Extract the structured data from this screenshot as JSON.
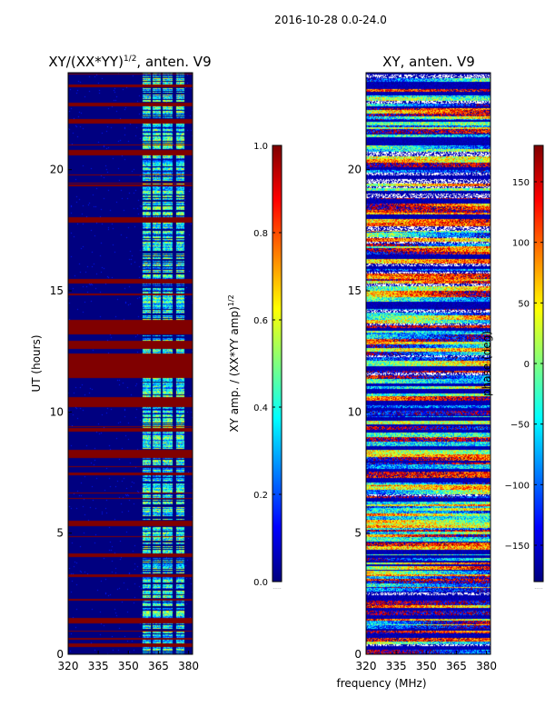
{
  "figure_title": "2016-10-28 0.0-24.0",
  "colors": {
    "jet": [
      "#00007f",
      "#0000ff",
      "#007fff",
      "#00ffff",
      "#7fff7f",
      "#ffff00",
      "#ff7f00",
      "#ff0000",
      "#7f0000"
    ],
    "background": "#ffffff",
    "axis": "#000000"
  },
  "chart_data": [
    {
      "type": "heatmap",
      "title_main": "XY/(XX*YY)",
      "title_sup": "1/2",
      "title_rest": ", anten. V9",
      "xlabel": "",
      "ylabel": "UT (hours)",
      "xlim": [
        320,
        382
      ],
      "ylim": [
        0,
        24
      ],
      "xticks": [
        320,
        335,
        350,
        365,
        380
      ],
      "yticks": [
        0,
        5,
        10,
        15,
        20
      ],
      "colorbar": {
        "label_main": "XY amp. / (XX*YY amp)",
        "label_sup": "1/2",
        "range": [
          0.0,
          1.0
        ],
        "ticks": [
          "0.0",
          "0.2",
          "0.4",
          "0.6",
          "0.8",
          "1.0"
        ]
      },
      "mostly_value": 0.0,
      "saturated_bands": [
        [
          0.3,
          0.45
        ],
        [
          1.3,
          1.5
        ],
        [
          2.2,
          2.3
        ],
        [
          3.2,
          3.3
        ],
        [
          4.0,
          4.15
        ],
        [
          5.3,
          5.5
        ],
        [
          7.4,
          7.5
        ],
        [
          8.1,
          8.45
        ],
        [
          9.2,
          9.35
        ],
        [
          10.2,
          10.6
        ],
        [
          11.4,
          12.4
        ],
        [
          12.6,
          12.9
        ],
        [
          13.2,
          13.8
        ],
        [
          14.8,
          14.9
        ],
        [
          15.3,
          15.5
        ],
        [
          17.8,
          18.05
        ],
        [
          19.3,
          19.4
        ],
        [
          20.6,
          20.8
        ],
        [
          21.9,
          22.1
        ],
        [
          22.6,
          22.75
        ],
        [
          23.4,
          23.5
        ]
      ],
      "bright_channels_MHz": [
        [
          357,
          361
        ],
        [
          362,
          366
        ],
        [
          367,
          372
        ],
        [
          374,
          378
        ]
      ]
    },
    {
      "type": "heatmap",
      "title_main": "XY, anten. V9",
      "xlabel": "frequency (MHz)",
      "ylabel": "",
      "xlim": [
        320,
        382
      ],
      "ylim": [
        0,
        24
      ],
      "xticks": [
        320,
        335,
        350,
        365,
        380
      ],
      "yticks": [
        0,
        5,
        10,
        15,
        20
      ],
      "colorbar": {
        "label": "phase (deg)",
        "range": [
          -180,
          180
        ],
        "ticks": [
          "−150",
          "−100",
          "−50",
          "0",
          "50",
          "100",
          "150"
        ]
      },
      "value_range_deg": [
        -180,
        180
      ]
    }
  ]
}
